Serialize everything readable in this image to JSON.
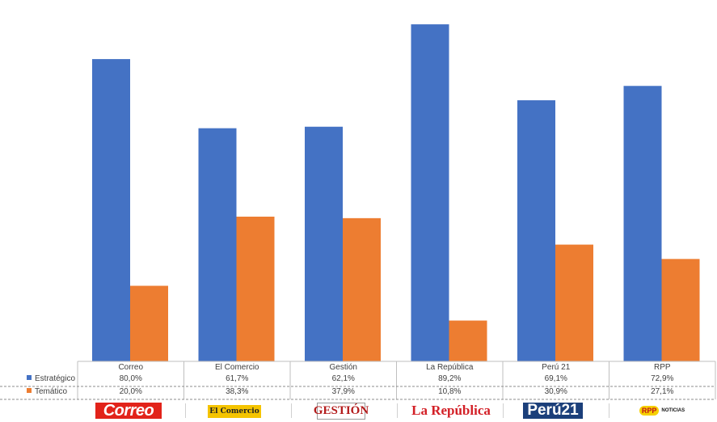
{
  "chart_data": {
    "type": "bar",
    "categories": [
      "Correo",
      "El Comercio",
      "Gestión",
      "La República",
      "Perú 21",
      "RPP"
    ],
    "series": [
      {
        "name": "Estratégico",
        "color": "#4472c4",
        "values": [
          80.0,
          61.7,
          62.1,
          89.2,
          69.1,
          72.9
        ],
        "labels": [
          "80,0%",
          "61,7%",
          "62,1%",
          "89,2%",
          "69,1%",
          "72,9%"
        ]
      },
      {
        "name": "Temático",
        "color": "#ed7d31",
        "values": [
          20.0,
          38.3,
          37.9,
          10.8,
          30.9,
          27.1
        ],
        "labels": [
          "20,0%",
          "38,3%",
          "37,9%",
          "10,8%",
          "30,9%",
          "27,1%"
        ]
      }
    ],
    "ylim": [
      0,
      92
    ],
    "grid": false,
    "legend": "data-table-below"
  },
  "logos": {
    "correo": "Correo",
    "comercio": "El Comercio",
    "gestion": "GESTIÓN",
    "republica": "La República",
    "peru21": "Perú21",
    "rpp_badge": "RPP",
    "rpp_text": "NOTICIAS"
  }
}
